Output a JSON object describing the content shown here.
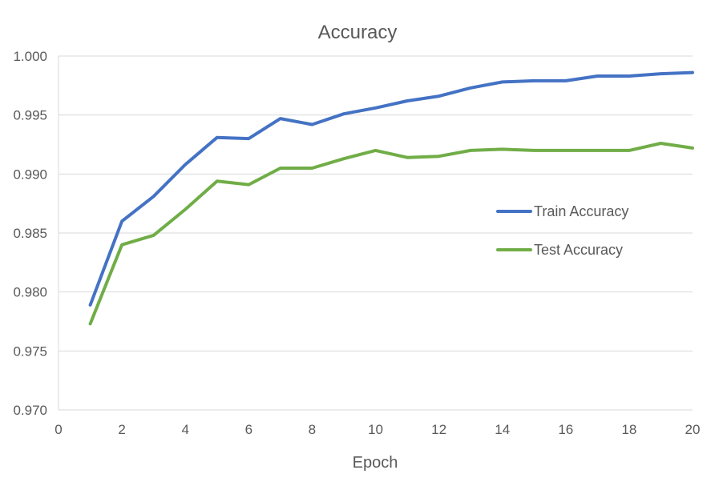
{
  "chart_data": {
    "type": "line",
    "title": "Accuracy",
    "xlabel": "Epoch",
    "ylabel": "",
    "xlim": [
      0,
      20
    ],
    "ylim": [
      0.97,
      1.0
    ],
    "x_ticks": [
      0,
      2,
      4,
      6,
      8,
      10,
      12,
      14,
      16,
      18,
      20
    ],
    "y_ticks": [
      "0.970",
      "0.975",
      "0.980",
      "0.985",
      "0.990",
      "0.995",
      "1.000"
    ],
    "grid": "horizontal",
    "legend_position": "right",
    "x": [
      1,
      2,
      3,
      4,
      5,
      6,
      7,
      8,
      9,
      10,
      11,
      12,
      13,
      14,
      15,
      16,
      17,
      18,
      19,
      20
    ],
    "series": [
      {
        "name": "Train Accuracy",
        "color": "#4472C4",
        "values": [
          0.9789,
          0.986,
          0.9881,
          0.9908,
          0.9931,
          0.993,
          0.9947,
          0.9942,
          0.9951,
          0.9956,
          0.9962,
          0.9966,
          0.9973,
          0.9978,
          0.9979,
          0.9979,
          0.9983,
          0.9983,
          0.9985,
          0.9986
        ]
      },
      {
        "name": "Test Accuracy",
        "color": "#70AD47",
        "values": [
          0.9773,
          0.984,
          0.9848,
          0.987,
          0.9894,
          0.9891,
          0.9905,
          0.9905,
          0.9913,
          0.992,
          0.9914,
          0.9915,
          0.992,
          0.9921,
          0.992,
          0.992,
          0.992,
          0.992,
          0.9926,
          0.9922
        ]
      }
    ]
  }
}
